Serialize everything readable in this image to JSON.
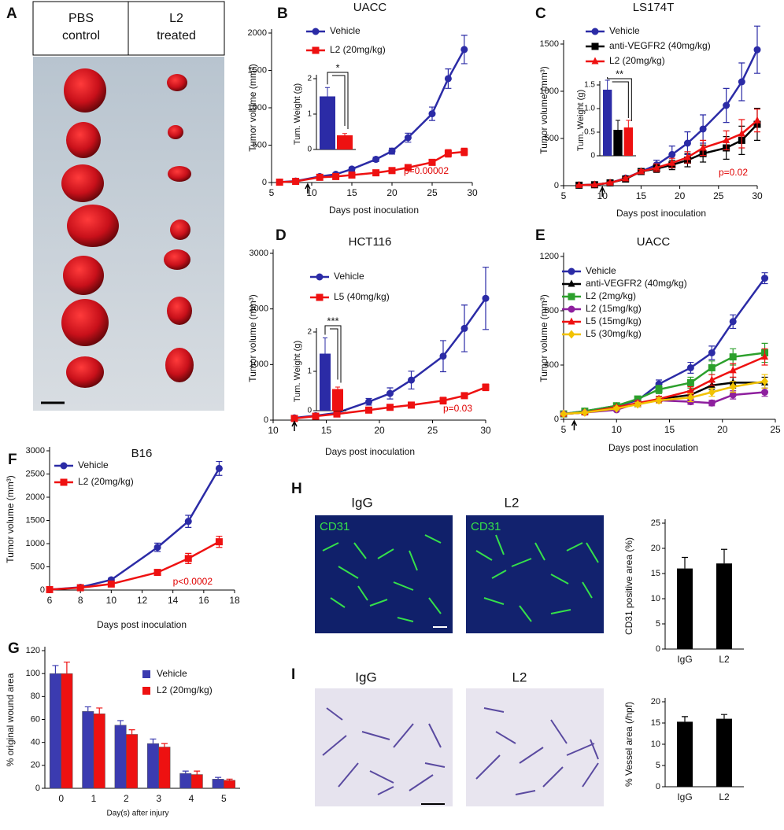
{
  "images": {
    "panel_a": {
      "letter": "A",
      "headers": [
        [
          "PBS",
          "control"
        ],
        [
          "L2",
          "treated"
        ]
      ]
    },
    "panel_h": {
      "letter": "H",
      "labels": [
        "IgG",
        "L2"
      ],
      "stain": [
        "CD31",
        "CD31"
      ]
    },
    "panel_i": {
      "letter": "I",
      "labels": [
        "IgG",
        "L2"
      ]
    }
  },
  "chart_data": [
    {
      "type": "line",
      "panel": "B",
      "title": "UACC",
      "xlabel": "Days post inoculation",
      "ylabel": "Tumor volume (mm³)",
      "x": [
        6,
        8,
        11,
        13,
        15,
        18,
        20,
        22,
        25,
        27,
        29
      ],
      "xlim": [
        5,
        30
      ],
      "xticks": [
        5,
        10,
        15,
        20,
        25,
        30
      ],
      "ylim": [
        0,
        2000
      ],
      "yticks": [
        0,
        500,
        1000,
        1500,
        2000
      ],
      "arrow_x": 9.5,
      "note": "p=0.00002",
      "note_color": "#e00000",
      "series": [
        {
          "name": "Vehicle",
          "color": "#2b2ba6",
          "marker": "circle",
          "values": [
            5,
            20,
            80,
            110,
            180,
            310,
            420,
            600,
            920,
            1390,
            1780
          ],
          "errors": [
            5,
            10,
            15,
            20,
            25,
            30,
            40,
            60,
            90,
            130,
            190
          ]
        },
        {
          "name": "L2 (20mg/kg)",
          "color": "#ee1111",
          "marker": "square",
          "values": [
            5,
            15,
            70,
            80,
            100,
            130,
            160,
            200,
            270,
            390,
            410
          ],
          "errors": [
            5,
            8,
            10,
            12,
            15,
            20,
            20,
            25,
            30,
            50,
            50
          ]
        }
      ],
      "inset": {
        "type": "bar",
        "ylabel": "Tum. Weight (g)",
        "ylim": [
          0,
          2
        ],
        "yticks": [
          0,
          1,
          2
        ],
        "values": [
          1.5,
          0.4
        ],
        "errors": [
          0.25,
          0.05
        ],
        "colors": [
          "#2b2ba6",
          "#ee1111"
        ],
        "significance": "*"
      }
    },
    {
      "type": "line",
      "panel": "C",
      "title": "LS174T",
      "xlabel": "Days post inoculation",
      "ylabel": "Tumor volume (mm³)",
      "x": [
        7,
        9,
        11,
        13,
        15,
        17,
        19,
        21,
        23,
        26,
        28,
        30
      ],
      "xlim": [
        5,
        30
      ],
      "xticks": [
        5,
        10,
        15,
        20,
        25,
        30
      ],
      "ylim": [
        0,
        1500
      ],
      "yticks": [
        0,
        500,
        1000,
        1500
      ],
      "arrow_x": 10,
      "note": "p=0.02",
      "note_color": "#e00000",
      "series": [
        {
          "name": "Vehicle",
          "color": "#2b2ba6",
          "marker": "circle",
          "values": [
            5,
            10,
            30,
            80,
            150,
            220,
            330,
            450,
            600,
            850,
            1100,
            1440
          ],
          "errors": [
            5,
            5,
            10,
            20,
            30,
            50,
            90,
            120,
            150,
            180,
            200,
            250
          ]
        },
        {
          "name": "anti-VEGFR2 (40mg/kg)",
          "color": "#000000",
          "marker": "square",
          "values": [
            5,
            10,
            30,
            70,
            150,
            180,
            220,
            270,
            340,
            400,
            480,
            650
          ],
          "errors": [
            5,
            5,
            10,
            15,
            20,
            40,
            50,
            70,
            90,
            120,
            150,
            170
          ]
        },
        {
          "name": "L2 (20mg/kg)",
          "color": "#ee1111",
          "marker": "triangle",
          "values": [
            5,
            10,
            30,
            75,
            150,
            190,
            240,
            300,
            400,
            480,
            550,
            690
          ],
          "errors": [
            5,
            5,
            10,
            15,
            20,
            40,
            50,
            60,
            80,
            100,
            150,
            120
          ]
        }
      ],
      "inset": {
        "type": "bar",
        "ylabel": "Tum. Weight (g)",
        "ylim": [
          0,
          1.5
        ],
        "yticks": [
          0,
          0.5,
          {
            "value": 1,
            "label": "1.0"
          },
          1.5
        ],
        "values": [
          1.4,
          0.55,
          0.6
        ],
        "errors": [
          0.2,
          0.2,
          0.15
        ],
        "colors": [
          "#2b2ba6",
          "#000000",
          "#ee1111"
        ],
        "significance": "**"
      }
    },
    {
      "type": "line",
      "panel": "D",
      "title": "HCT116",
      "xlabel": "Days post inoculation",
      "ylabel": "Tumor volume (mm³)",
      "x": [
        12,
        14,
        16,
        19,
        21,
        23,
        26,
        28,
        30
      ],
      "xlim": [
        10,
        30
      ],
      "xticks": [
        10,
        15,
        20,
        25,
        30
      ],
      "ylim": [
        0,
        3000
      ],
      "yticks": [
        0,
        1000,
        2000,
        3000
      ],
      "arrow_x": 12,
      "note": "p=0.03",
      "note_color": "#e00000",
      "series": [
        {
          "name": "Vehicle",
          "color": "#2b2ba6",
          "marker": "circle",
          "values": [
            40,
            80,
            130,
            330,
            480,
            720,
            1150,
            1650,
            2190
          ],
          "errors": [
            20,
            30,
            40,
            60,
            100,
            160,
            280,
            420,
            560
          ]
        },
        {
          "name": "L5 (40mg/kg)",
          "color": "#ee1111",
          "marker": "square",
          "values": [
            30,
            70,
            110,
            180,
            230,
            270,
            350,
            440,
            590
          ],
          "errors": [
            15,
            20,
            25,
            30,
            40,
            40,
            60,
            50,
            60
          ]
        }
      ],
      "inset": {
        "type": "bar",
        "ylabel": "Tum. Weight (g)",
        "ylim": [
          0,
          2
        ],
        "yticks": [
          0,
          1,
          2
        ],
        "values": [
          1.45,
          0.55
        ],
        "errors": [
          0.4,
          0.05
        ],
        "colors": [
          "#2b2ba6",
          "#ee1111"
        ],
        "significance": "***"
      }
    },
    {
      "type": "line",
      "panel": "E",
      "title": "UACC",
      "xlabel": "Days post inoculation",
      "ylabel": "Tumor volume (mm³)",
      "x": [
        5,
        7,
        10,
        12,
        14,
        17,
        19,
        21,
        24
      ],
      "xlim": [
        5,
        25
      ],
      "xticks": [
        5,
        10,
        15,
        20,
        25
      ],
      "ylim": [
        0,
        1200
      ],
      "yticks": [
        0,
        400,
        800,
        1200
      ],
      "arrow_x": 6,
      "series": [
        {
          "name": "Vehicle",
          "color": "#2b2ba6",
          "marker": "circle",
          "values": [
            40,
            60,
            100,
            140,
            260,
            380,
            490,
            720,
            1040
          ],
          "errors": [
            5,
            10,
            15,
            20,
            30,
            40,
            50,
            50,
            40
          ]
        },
        {
          "name": "anti-VEGFR2 (40mg/kg)",
          "color": "#000000",
          "marker": "triangle",
          "values": [
            40,
            50,
            90,
            110,
            150,
            180,
            250,
            270,
            270
          ],
          "errors": [
            5,
            5,
            10,
            15,
            20,
            30,
            30,
            40,
            40
          ]
        },
        {
          "name": "L2 (2mg/kg)",
          "color": "#2ca02c",
          "marker": "square",
          "values": [
            40,
            60,
            100,
            150,
            220,
            270,
            380,
            460,
            490
          ],
          "errors": [
            5,
            10,
            15,
            20,
            30,
            40,
            50,
            60,
            70
          ]
        },
        {
          "name": "L2 (15mg/kg)",
          "color": "#8e1f9e",
          "marker": "circle",
          "values": [
            40,
            50,
            70,
            120,
            140,
            130,
            120,
            180,
            200
          ],
          "errors": [
            5,
            5,
            10,
            15,
            20,
            20,
            20,
            30,
            30
          ]
        },
        {
          "name": "L5 (15mg/kg)",
          "color": "#ee1111",
          "marker": "triangle",
          "values": [
            40,
            50,
            90,
            120,
            150,
            210,
            290,
            360,
            460
          ],
          "errors": [
            5,
            5,
            10,
            15,
            20,
            30,
            40,
            50,
            60
          ]
        },
        {
          "name": "L5 (30mg/kg)",
          "color": "#f2c200",
          "marker": "diamond",
          "values": [
            40,
            50,
            80,
            110,
            140,
            160,
            200,
            240,
            280
          ],
          "errors": [
            5,
            5,
            10,
            15,
            20,
            30,
            30,
            40,
            50
          ]
        }
      ]
    },
    {
      "type": "line",
      "panel": "F",
      "title": "B16",
      "xlabel": "Days post inoculation",
      "ylabel": "Tumor volume (mm³)",
      "x": [
        6,
        8,
        10,
        13,
        15,
        17
      ],
      "xlim": [
        6,
        18
      ],
      "xticks": [
        6,
        8,
        10,
        12,
        14,
        16,
        18
      ],
      "ylim": [
        0,
        3000
      ],
      "yticks": [
        0,
        500,
        1000,
        1500,
        2000,
        2500,
        3000
      ],
      "note": "p<0.0002",
      "note_color": "#e00000",
      "series": [
        {
          "name": "Vehicle",
          "color": "#2b2ba6",
          "marker": "circle",
          "values": [
            10,
            60,
            220,
            920,
            1480,
            2620
          ],
          "errors": [
            10,
            20,
            40,
            90,
            130,
            150
          ]
        },
        {
          "name": "L2 (20mg/kg)",
          "color": "#ee1111",
          "marker": "square",
          "values": [
            10,
            50,
            130,
            380,
            680,
            1040
          ],
          "errors": [
            10,
            15,
            30,
            50,
            110,
            120
          ]
        }
      ]
    },
    {
      "type": "bar",
      "panel": "G",
      "xlabel": "Day(s) after injury",
      "ylabel": "% original wound area",
      "categories": [
        "0",
        "1",
        "2",
        "3",
        "4",
        "5"
      ],
      "ylim": [
        0,
        120
      ],
      "yticks": [
        0,
        20,
        40,
        60,
        80,
        100,
        120
      ],
      "series": [
        {
          "name": "Vehicle",
          "color": "#3b3bb0",
          "values": [
            100,
            67,
            55,
            39,
            13,
            8
          ],
          "errors": [
            7,
            4,
            4,
            4,
            2,
            1.5
          ]
        },
        {
          "name": "L2 (20mg/kg)",
          "color": "#ee1111",
          "values": [
            100,
            65,
            47,
            36,
            12,
            7
          ],
          "errors": [
            10,
            5,
            4,
            3,
            3,
            1
          ]
        }
      ]
    },
    {
      "type": "bar",
      "ylabel": "CD31 positive area (%)",
      "categories": [
        "IgG",
        "L2"
      ],
      "ylim": [
        0,
        25
      ],
      "yticks": [
        0,
        5,
        10,
        15,
        20,
        25
      ],
      "series": [
        {
          "color": "#000000",
          "values": [
            16,
            17
          ],
          "errors": [
            2.2,
            2.8
          ]
        }
      ]
    },
    {
      "type": "bar",
      "ylabel": "% Vessel area (/hpf)",
      "categories": [
        "IgG",
        "L2"
      ],
      "ylim": [
        0,
        20
      ],
      "yticks": [
        0,
        5,
        10,
        15,
        20
      ],
      "series": [
        {
          "color": "#000000",
          "values": [
            15.3,
            16
          ],
          "errors": [
            1.2,
            1
          ]
        }
      ]
    }
  ]
}
